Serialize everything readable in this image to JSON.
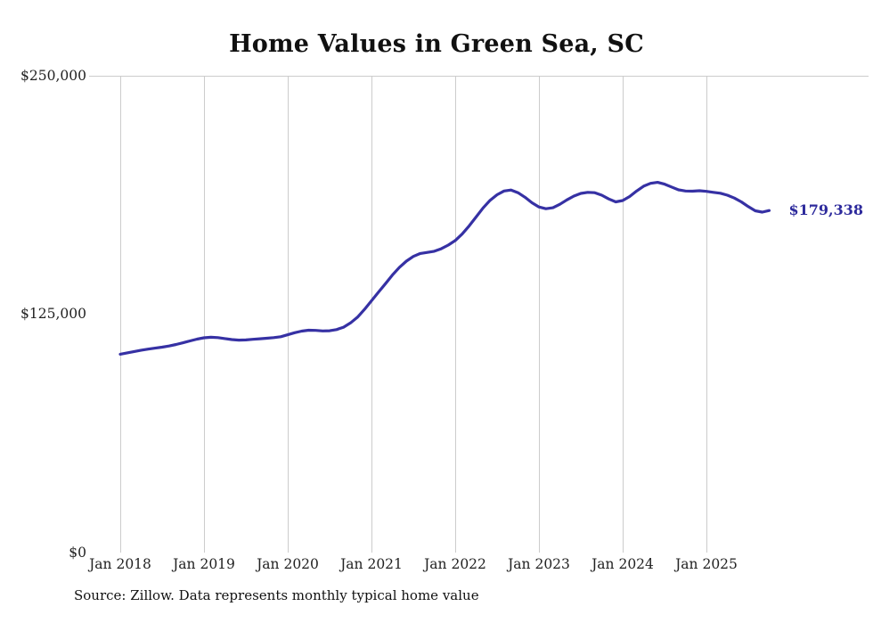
{
  "title": "Home Values in Green Sea, SC",
  "source_note": "Source: Zillow. Data represents monthly typical home value",
  "end_label": "$179,338",
  "colors": {
    "line": "#3631a4",
    "grid": "#cccccc",
    "end_label_text": "#2d2a9c"
  },
  "chart_data": {
    "type": "line",
    "title": "Home Values in Green Sea, SC",
    "frequency": "monthly",
    "x_start": "2018-01",
    "x_end": "2025-10",
    "x_tick_labels": [
      "Jan 2018",
      "Jan 2019",
      "Jan 2020",
      "Jan 2021",
      "Jan 2022",
      "Jan 2023",
      "Jan 2024",
      "Jan 2025"
    ],
    "y_tick_labels": [
      "$0",
      "$125,000",
      "$250,000"
    ],
    "ylim": [
      0,
      250000
    ],
    "grid": "vertical",
    "legend": "none",
    "end_value": 179338,
    "series": [
      {
        "name": "Typical home value",
        "values": [
          104000,
          104700,
          105400,
          106100,
          106700,
          107200,
          107700,
          108300,
          109100,
          110000,
          111000,
          111900,
          112600,
          112900,
          112700,
          112200,
          111700,
          111400,
          111500,
          111800,
          112100,
          112400,
          112700,
          113200,
          114200,
          115300,
          116100,
          116600,
          116500,
          116200,
          116300,
          116900,
          118200,
          120400,
          123400,
          127500,
          132000,
          136500,
          141000,
          145500,
          149500,
          152800,
          155300,
          156800,
          157400,
          158000,
          159300,
          161200,
          163600,
          167000,
          171300,
          176000,
          180700,
          184700,
          187600,
          189600,
          190100,
          188700,
          186300,
          183400,
          181200,
          180300,
          180800,
          182600,
          184900,
          186900,
          188300,
          188900,
          188700,
          187400,
          185400,
          183900,
          184600,
          186700,
          189600,
          192100,
          193600,
          194100,
          193200,
          191700,
          190200,
          189600,
          189500,
          189700,
          189400,
          188900,
          188400,
          187400,
          185900,
          183900,
          181400,
          179200,
          178500,
          179338
        ]
      }
    ]
  }
}
